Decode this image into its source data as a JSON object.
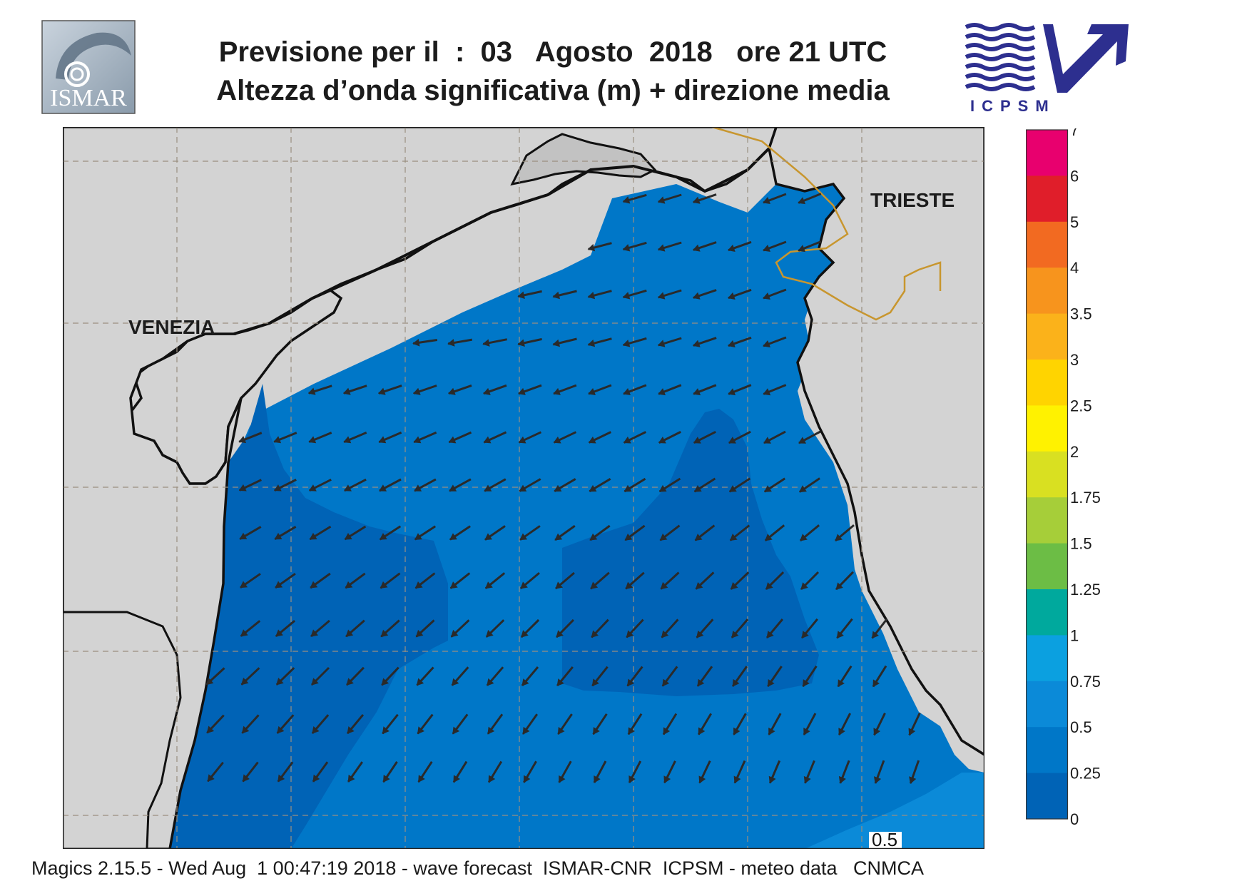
{
  "header": {
    "logo_left_text": "ISMAR",
    "title_line1": "Previsione per il  :  03   Agosto  2018   ore 21 UTC",
    "title_line2": "Altezza d’onda significativa (m) + direzione media",
    "logo_right_text": "ICPSM"
  },
  "map": {
    "places": [
      {
        "id": "venezia",
        "label": "VENEZIA"
      },
      {
        "id": "trieste",
        "label": "TRIESTE"
      }
    ],
    "contour_label": "0.5",
    "colors": {
      "land": "#d3d3d3",
      "sea_0_025": "#0063b6",
      "sea_025_05": "#0077c8",
      "sea_05_075": "#0b8ad8",
      "border": "#c8962e",
      "grid": "#9a8f80",
      "arrow": "#2a2a2a"
    }
  },
  "legend": {
    "ticks": [
      "7",
      "6",
      "5",
      "4",
      "3.5",
      "3",
      "2.5",
      "2",
      "1.75",
      "1.5",
      "1.25",
      "1",
      "0.75",
      "0.5",
      "0.25",
      "0"
    ],
    "colors": [
      "#e8006e",
      "#e01e2a",
      "#f26a21",
      "#f7941d",
      "#fbb21a",
      "#ffd400",
      "#fff200",
      "#d9e021",
      "#a6ce39",
      "#6cbd45",
      "#00a99d",
      "#0ba0e0",
      "#0b8ad8",
      "#0077c8",
      "#0063b6"
    ]
  },
  "footer": {
    "text": "Magics 2.15.5 - Wed Aug  1 00:47:19 2018 - wave forecast  ISMAR-CNR  ICPSM - meteo data   CNMCA"
  }
}
